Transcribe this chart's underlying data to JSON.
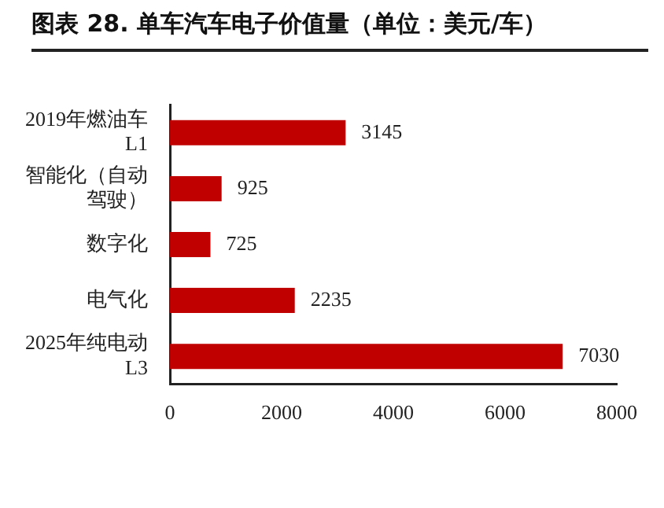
{
  "chart_data": {
    "type": "bar",
    "orientation": "horizontal",
    "title": "图表 28. 单车汽车电子价值量（单位：美元/车）",
    "categories": [
      "2019年燃油车L1",
      "智能化（自动驾驶）",
      "数字化",
      "电气化",
      "2025年纯电动L3"
    ],
    "values": [
      3145,
      925,
      725,
      2235,
      7030
    ],
    "color": "#c00000",
    "xlim": [
      0,
      8000
    ],
    "xticks": [
      0,
      2000,
      4000,
      6000,
      8000
    ],
    "grid": false,
    "legend": false,
    "data_labels": true
  }
}
